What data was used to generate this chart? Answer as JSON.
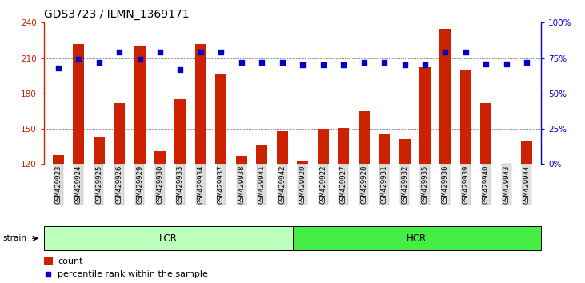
{
  "title": "GDS3723 / ILMN_1369171",
  "samples": [
    "GSM429923",
    "GSM429924",
    "GSM429925",
    "GSM429926",
    "GSM429929",
    "GSM429930",
    "GSM429933",
    "GSM429934",
    "GSM429937",
    "GSM429938",
    "GSM429941",
    "GSM429942",
    "GSM429920",
    "GSM429922",
    "GSM429927",
    "GSM429928",
    "GSM429931",
    "GSM429932",
    "GSM429935",
    "GSM429936",
    "GSM429939",
    "GSM429940",
    "GSM429943",
    "GSM429944"
  ],
  "counts": [
    128,
    222,
    143,
    172,
    220,
    131,
    175,
    222,
    197,
    127,
    136,
    148,
    122,
    150,
    151,
    165,
    145,
    141,
    202,
    235,
    200,
    172,
    120,
    140
  ],
  "percentile": [
    68,
    74,
    72,
    79,
    74,
    79,
    67,
    79,
    79,
    72,
    72,
    72,
    70,
    70,
    70,
    72,
    72,
    70,
    70,
    79,
    79,
    71,
    71,
    72
  ],
  "groups": [
    {
      "label": "LCR",
      "start": 0,
      "end": 12,
      "color": "#bbffbb"
    },
    {
      "label": "HCR",
      "start": 12,
      "end": 24,
      "color": "#44ee44"
    }
  ],
  "bar_color": "#cc2200",
  "dot_color": "#0000cc",
  "ylim_left": [
    120,
    240
  ],
  "ylim_right": [
    0,
    100
  ],
  "yticks_left": [
    120,
    150,
    180,
    210,
    240
  ],
  "yticks_right": [
    0,
    25,
    50,
    75,
    100
  ],
  "grid_color": "#000000",
  "xlabel_color": "#cc2200",
  "ylabel_right_color": "#0000cc",
  "legend_count_label": "count",
  "legend_pct_label": "percentile rank within the sample",
  "strain_label": "strain",
  "title_fontsize": 10,
  "tick_fontsize": 6.5,
  "axis_fontsize": 8
}
